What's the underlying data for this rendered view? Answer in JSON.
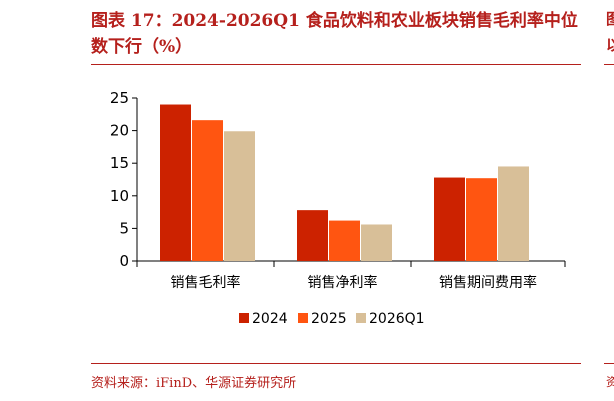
{
  "caption": "图表 17：2024-2026Q1 食品饮料和农业板块销售毛利率中位数下行（%）",
  "source": "资料来源：iFinD、华源证券研究所",
  "edge": {
    "glyph1": "图",
    "glyph2": "以",
    "glyph3": "资"
  },
  "colors": {
    "accent": "#b5201c",
    "series_2024": "#cc2200",
    "series_2025": "#ff5511",
    "series_2026Q1": "#d8bf98"
  },
  "chart_data": {
    "type": "bar",
    "categories": [
      "销售毛利率",
      "销售净利率",
      "销售期间费用率"
    ],
    "series": [
      {
        "name": "2024",
        "values": [
          24.0,
          7.8,
          12.8
        ]
      },
      {
        "name": "2025",
        "values": [
          21.6,
          6.2,
          12.7
        ]
      },
      {
        "name": "2026Q1",
        "values": [
          19.9,
          5.6,
          14.5
        ]
      }
    ],
    "yticks": [
      "0",
      "5",
      "10",
      "15",
      "20",
      "25"
    ],
    "ylim": [
      0,
      25
    ],
    "xlabel": "",
    "ylabel": "",
    "grid": false,
    "legend": "bottom"
  }
}
